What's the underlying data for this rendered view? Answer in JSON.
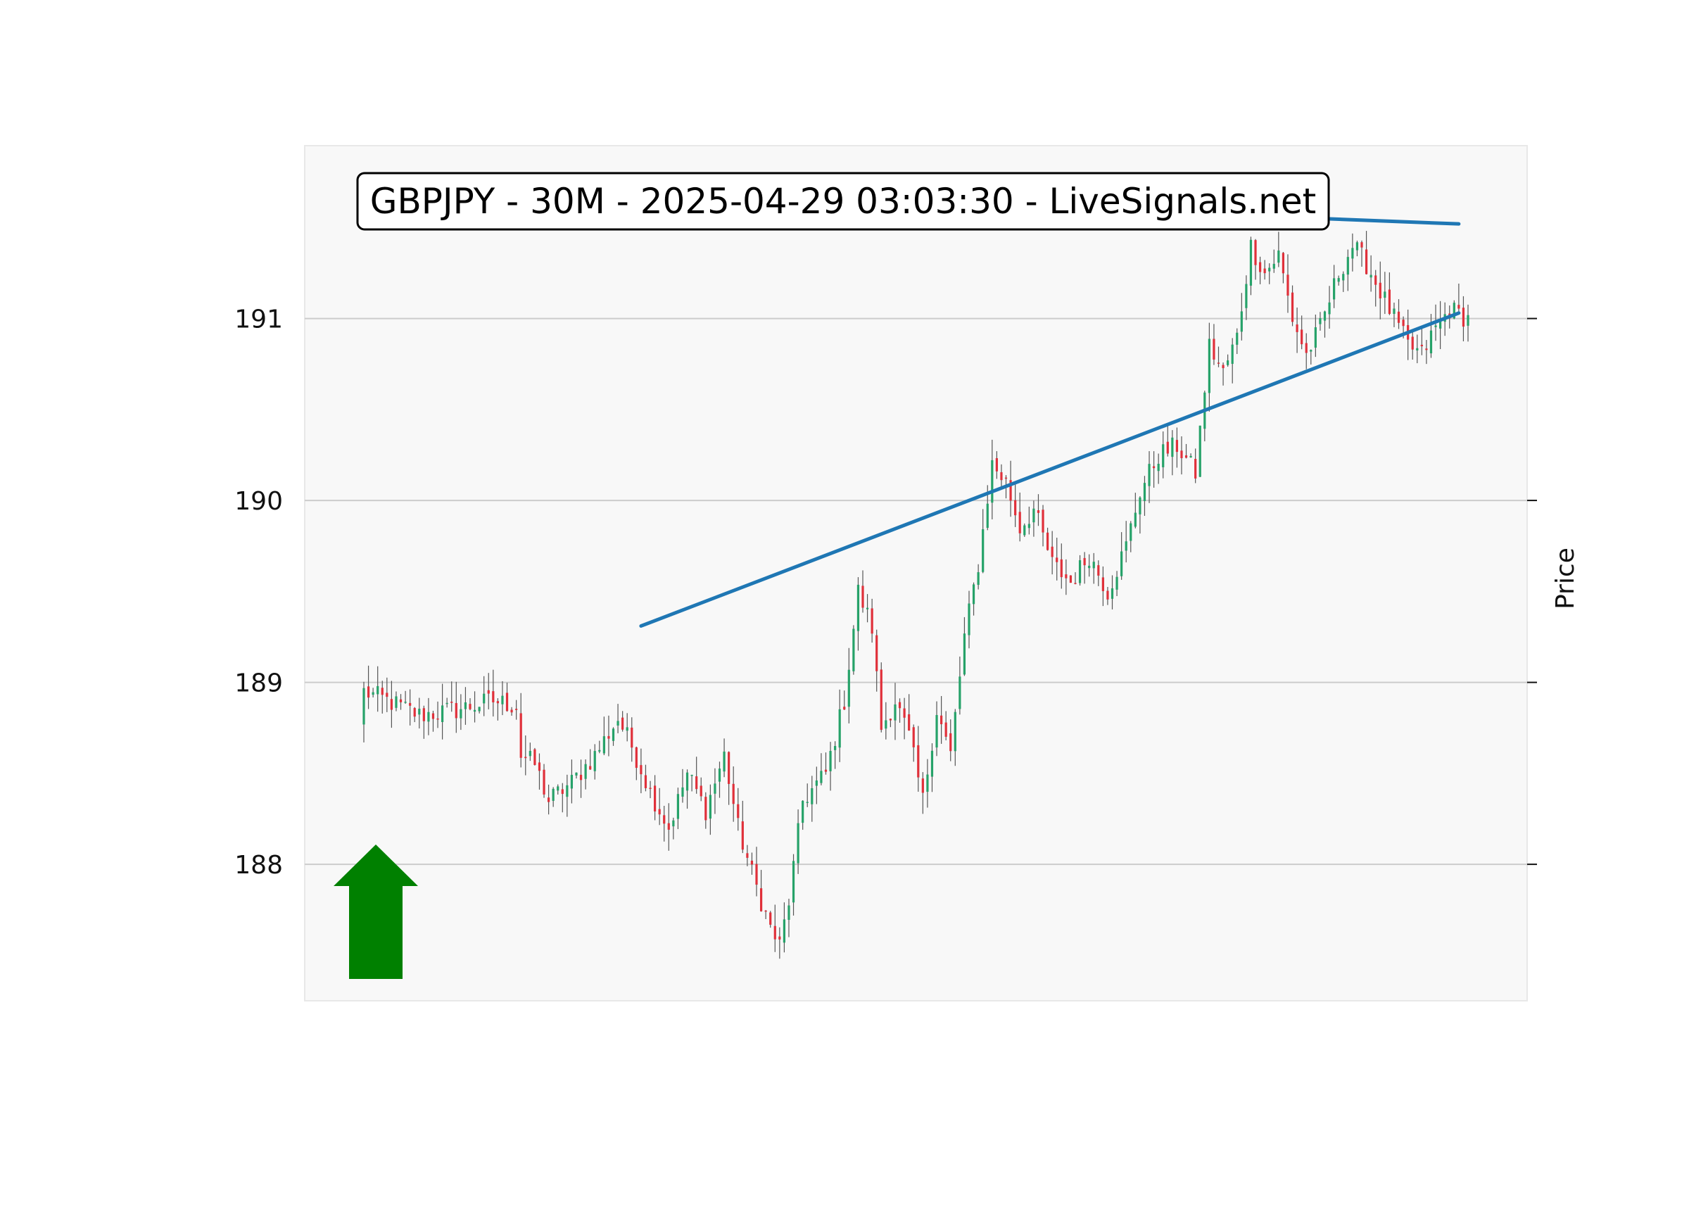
{
  "chart_data": {
    "type": "candlestick",
    "title": "GBPJPY - 30M - 2025-04-29 03:03:30 - LiveSignals.net",
    "ylabel": "Price",
    "ylim": [
      187.25,
      191.95
    ],
    "yticks": [
      188,
      189,
      190,
      191
    ],
    "grid": "horizontal",
    "signal": "up",
    "colors": {
      "up": "#26a269",
      "down": "#e0303a",
      "wick": "#555555",
      "trendline": "#1f77b4",
      "arrow": "#008000",
      "grid": "#cccccc",
      "plot_bg": "#f8f8f8"
    },
    "bar_count": 240,
    "trendlines": [
      {
        "from": [
          60,
          189.31
        ],
        "to": [
          237,
          191.03
        ]
      },
      {
        "from": [
          156,
          191.6
        ],
        "to": [
          237,
          191.52
        ]
      }
    ],
    "series_keypoints": [
      [
        0,
        188.95
      ],
      [
        5,
        188.9
      ],
      [
        12,
        188.82
      ],
      [
        20,
        188.85
      ],
      [
        28,
        188.9
      ],
      [
        33,
        188.87
      ],
      [
        34,
        188.6
      ],
      [
        37,
        188.55
      ],
      [
        40,
        188.35
      ],
      [
        45,
        188.45
      ],
      [
        50,
        188.6
      ],
      [
        55,
        188.8
      ],
      [
        58,
        188.65
      ],
      [
        62,
        188.4
      ],
      [
        66,
        188.2
      ],
      [
        70,
        188.5
      ],
      [
        74,
        188.3
      ],
      [
        78,
        188.6
      ],
      [
        81,
        188.2
      ],
      [
        84,
        187.95
      ],
      [
        88,
        187.65
      ],
      [
        90,
        187.55
      ],
      [
        92,
        187.8
      ],
      [
        95,
        188.35
      ],
      [
        100,
        188.5
      ],
      [
        104,
        188.9
      ],
      [
        107,
        189.5
      ],
      [
        110,
        189.3
      ],
      [
        112,
        188.75
      ],
      [
        115,
        188.9
      ],
      [
        118,
        188.7
      ],
      [
        121,
        188.35
      ],
      [
        124,
        188.85
      ],
      [
        127,
        188.6
      ],
      [
        130,
        189.25
      ],
      [
        133,
        189.65
      ],
      [
        136,
        190.2
      ],
      [
        139,
        190.1
      ],
      [
        142,
        189.85
      ],
      [
        145,
        189.95
      ],
      [
        149,
        189.65
      ],
      [
        153,
        189.55
      ],
      [
        157,
        189.7
      ],
      [
        161,
        189.5
      ],
      [
        165,
        189.75
      ],
      [
        168,
        190.05
      ],
      [
        172,
        190.25
      ],
      [
        176,
        190.3
      ],
      [
        180,
        190.15
      ],
      [
        183,
        190.85
      ],
      [
        186,
        190.7
      ],
      [
        189,
        190.9
      ],
      [
        192,
        191.4
      ],
      [
        195,
        191.25
      ],
      [
        198,
        191.35
      ],
      [
        201,
        191.0
      ],
      [
        204,
        190.8
      ],
      [
        207,
        190.95
      ],
      [
        211,
        191.25
      ],
      [
        214,
        191.4
      ],
      [
        217,
        191.3
      ],
      [
        220,
        191.15
      ],
      [
        223,
        191.0
      ],
      [
        226,
        190.85
      ],
      [
        229,
        190.8
      ],
      [
        232,
        190.95
      ],
      [
        235,
        191.05
      ],
      [
        239,
        191.0
      ]
    ]
  }
}
